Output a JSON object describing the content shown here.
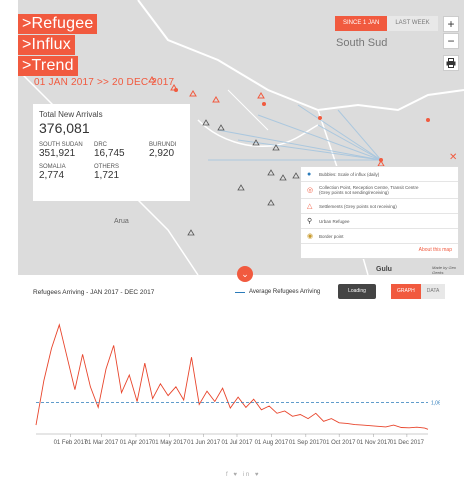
{
  "header": {
    "title_lines": [
      ">Refugee",
      ">Influx",
      ">Trend"
    ],
    "date_range": "01 JAN 2017 >> 20 DEC 2017"
  },
  "range_toggle": {
    "since": "SINCE 1 JAN",
    "last_week": "LAST WEEK"
  },
  "map_controls": {
    "zoom_in": "+",
    "zoom_out": "−",
    "print_icon": "printer-icon"
  },
  "map": {
    "country_label": "South Sud",
    "places": {
      "arua": "Arua",
      "gulu": "Gulu"
    },
    "attribution": "Made by Geo Geeks"
  },
  "stats": {
    "total_label": "Total New Arrivals",
    "total_value": "376,081",
    "countries": [
      {
        "name": "SOUTH SUDAN",
        "value": "351,921"
      },
      {
        "name": "DRC",
        "value": "16,745"
      },
      {
        "name": "BURUNDI",
        "value": "2,920"
      },
      {
        "name": "SOMALIA",
        "value": "2,774"
      },
      {
        "name": "OTHERS",
        "value": "1,721"
      }
    ]
  },
  "legend": {
    "items": [
      "Bubbles: Scale of influx (daily)",
      "Collection Point, Reception Centre, Transit Centre",
      "(Grey points not sending/receiving)",
      "Settlements (Grey points not receiving)",
      "Urban Refugee",
      "Border point"
    ],
    "about": "About this map"
  },
  "chart_header": {
    "title": "Refugees Arriving - JAN 2017 - DEC 2017",
    "avg_label": "Average Refugees Arriving",
    "loading": "Loading",
    "graph": "GRAPH",
    "data": "DATA"
  },
  "chart_data": {
    "type": "line",
    "title": "Refugees Arriving - JAN 2017 - DEC 2017",
    "x_tick_labels": [
      "01 Feb 2017",
      "01 Mar 2017",
      "01 Apr 2017",
      "01 May 2017",
      "01 Jun 2017",
      "01 Jul 2017",
      "01 Aug 2017",
      "01 Sep 2017",
      "01 Oct 2017",
      "01 Nov 2017",
      "01 Dec 2017"
    ],
    "average": 1062.38,
    "average_label": "1,062.38",
    "colors": {
      "line": "#e8452c",
      "average": "#2b7bba"
    },
    "series": [
      {
        "x": [
          "2017-01-01",
          "2017-01-08",
          "2017-01-15",
          "2017-01-22",
          "2017-01-29",
          "2017-02-05",
          "2017-02-12",
          "2017-02-19",
          "2017-02-26",
          "2017-03-05",
          "2017-03-12",
          "2017-03-19",
          "2017-03-26",
          "2017-04-02",
          "2017-04-09",
          "2017-04-16",
          "2017-04-23",
          "2017-04-30",
          "2017-05-07",
          "2017-05-14",
          "2017-05-21",
          "2017-05-28",
          "2017-06-04",
          "2017-06-11",
          "2017-06-18",
          "2017-06-25",
          "2017-07-02",
          "2017-07-09",
          "2017-07-16",
          "2017-07-23",
          "2017-07-30",
          "2017-08-06",
          "2017-08-13",
          "2017-08-20",
          "2017-08-27",
          "2017-09-03",
          "2017-09-10",
          "2017-09-17",
          "2017-09-24",
          "2017-10-01",
          "2017-10-08",
          "2017-10-15",
          "2017-10-22",
          "2017-10-29",
          "2017-11-05",
          "2017-11-12",
          "2017-11-19",
          "2017-11-26",
          "2017-12-03",
          "2017-12-10",
          "2017-12-17",
          "2017-12-20"
        ],
        "y": [
          300,
          1800,
          2900,
          3700,
          2600,
          1500,
          2700,
          1600,
          900,
          2200,
          3000,
          1400,
          2000,
          1100,
          2400,
          1200,
          1700,
          1300,
          1600,
          1150,
          2600,
          1000,
          1450,
          1100,
          1550,
          880,
          1250,
          900,
          1180,
          820,
          950,
          700,
          780,
          600,
          660,
          520,
          700,
          430,
          520,
          380,
          360,
          320,
          300,
          280,
          260,
          240,
          300,
          220,
          210,
          230,
          200,
          160
        ]
      }
    ],
    "ylim": [
      0,
      4200
    ]
  },
  "social": "f ♥ in ♥"
}
